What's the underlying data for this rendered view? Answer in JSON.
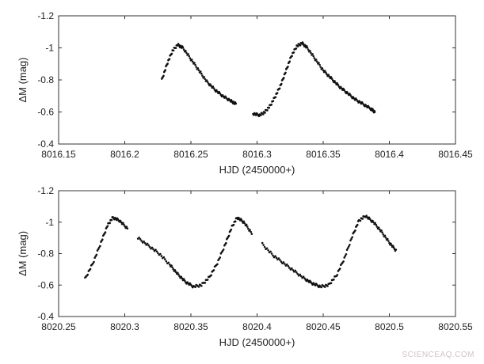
{
  "chart_data": [
    {
      "type": "scatter",
      "xlabel": "HJD (2450000+)",
      "ylabel": "ΔM (mag)",
      "xlim": [
        8016.15,
        8016.45
      ],
      "ylim": [
        -1.2,
        -0.4
      ],
      "y_reversed": true,
      "xticks": [
        "8016.15",
        "8016.2",
        "8016.25",
        "8016.3",
        "8016.35",
        "8016.4",
        "8016.45"
      ],
      "yticks": [
        "-1.2",
        "-1",
        "-0.8",
        "-0.6",
        "-0.4"
      ],
      "series": [
        {
          "x": [
            8016.228,
            8016.232,
            8016.236,
            8016.24,
            8016.244,
            8016.25,
            8016.256,
            8016.262,
            8016.268,
            8016.274,
            8016.28,
            8016.284,
            8016.297,
            8016.302,
            8016.306,
            8016.31,
            8016.314,
            8016.318,
            8016.322,
            8016.326,
            8016.33,
            8016.334,
            8016.338,
            8016.344,
            8016.35,
            8016.356,
            8016.362,
            8016.368,
            8016.374,
            8016.38,
            8016.386,
            8016.389
          ],
          "y": [
            -0.8,
            -0.9,
            -0.98,
            -1.02,
            -1.0,
            -0.93,
            -0.86,
            -0.79,
            -0.74,
            -0.7,
            -0.67,
            -0.65,
            -0.59,
            -0.58,
            -0.6,
            -0.64,
            -0.7,
            -0.77,
            -0.86,
            -0.95,
            -1.01,
            -1.03,
            -1.0,
            -0.93,
            -0.86,
            -0.81,
            -0.76,
            -0.72,
            -0.68,
            -0.65,
            -0.62,
            -0.6
          ]
        }
      ]
    },
    {
      "type": "scatter",
      "xlabel": "HJD (2450000+)",
      "ylabel": "ΔM (mag)",
      "xlim": [
        8020.25,
        8020.55
      ],
      "ylim": [
        -1.2,
        -0.4
      ],
      "y_reversed": true,
      "xticks": [
        "8020.25",
        "8020.3",
        "8020.35",
        "8020.4",
        "8020.45",
        "8020.5",
        "8020.55"
      ],
      "yticks": [
        "-1.2",
        "-1",
        "-0.8",
        "-0.6",
        "-0.4"
      ],
      "series": [
        {
          "x": [
            8020.27,
            8020.276,
            8020.282,
            8020.287,
            8020.291,
            8020.296,
            8020.302,
            8020.31,
            8020.318,
            8020.326,
            8020.334,
            8020.34,
            8020.346,
            8020.352,
            8020.358,
            8020.364,
            8020.37,
            8020.376,
            8020.381,
            8020.385,
            8020.39,
            8020.396,
            8020.404,
            8020.412,
            8020.42,
            8020.428,
            8020.436,
            8020.442,
            8020.448,
            8020.454,
            8020.46,
            8020.466,
            8020.472,
            8020.477,
            8020.482,
            8020.488,
            8020.494,
            8020.5,
            8020.505
          ],
          "y": [
            -0.64,
            -0.74,
            -0.87,
            -0.98,
            -1.03,
            -1.01,
            -0.96,
            -0.9,
            -0.85,
            -0.8,
            -0.73,
            -0.67,
            -0.62,
            -0.59,
            -0.6,
            -0.65,
            -0.74,
            -0.86,
            -0.97,
            -1.03,
            -1.0,
            -0.93,
            -0.86,
            -0.79,
            -0.74,
            -0.69,
            -0.64,
            -0.61,
            -0.59,
            -0.6,
            -0.66,
            -0.77,
            -0.91,
            -1.01,
            -1.04,
            -1.0,
            -0.94,
            -0.87,
            -0.82
          ]
        }
      ]
    }
  ],
  "watermark": "SCIENCEAQ.COM"
}
